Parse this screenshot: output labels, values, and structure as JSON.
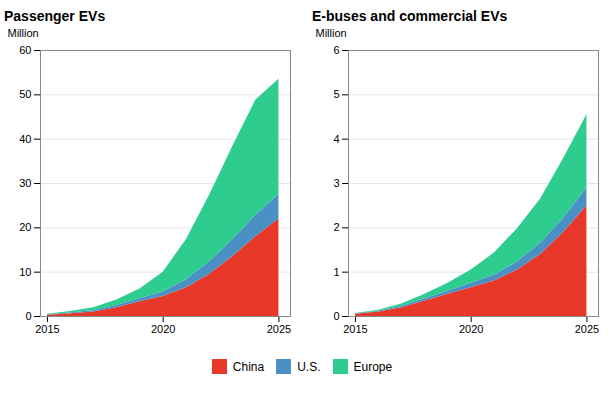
{
  "chart_data": [
    {
      "type": "area",
      "title": "Passenger EVs",
      "ylabel": "Million",
      "x": [
        2015,
        2016,
        2017,
        2018,
        2019,
        2020,
        2021,
        2022,
        2023,
        2024,
        2025
      ],
      "series": [
        {
          "name": "China",
          "color": "#E8382A",
          "values": [
            0.3,
            0.6,
            1.0,
            2.0,
            3.3,
            4.5,
            6.5,
            9.5,
            13.5,
            18.0,
            22.0
          ]
        },
        {
          "name": "U.S.",
          "color": "#4A90C4",
          "values": [
            0.1,
            0.2,
            0.35,
            0.5,
            0.7,
            1.0,
            1.8,
            2.8,
            3.8,
            4.8,
            5.5
          ]
        },
        {
          "name": "Europe",
          "color": "#2ECC8E",
          "values": [
            0.1,
            0.3,
            0.6,
            1.2,
            2.2,
            4.5,
            9.0,
            15.0,
            21.0,
            26.0,
            26.0
          ]
        }
      ],
      "stacked": true,
      "xlim": [
        2014.7,
        2025.5
      ],
      "xticks": [
        2015,
        2020,
        2025
      ],
      "ylim": [
        0,
        60
      ],
      "yticks": [
        0,
        10,
        20,
        30,
        40,
        50,
        60
      ],
      "grid": true,
      "legend": "bottom"
    },
    {
      "type": "area",
      "title": "E-buses and commercial EVs",
      "ylabel": "Million",
      "x": [
        2015,
        2016,
        2017,
        2018,
        2019,
        2020,
        2021,
        2022,
        2023,
        2024,
        2025
      ],
      "series": [
        {
          "name": "China",
          "color": "#E8382A",
          "values": [
            0.05,
            0.1,
            0.2,
            0.35,
            0.5,
            0.65,
            0.8,
            1.05,
            1.4,
            1.9,
            2.5
          ]
        },
        {
          "name": "U.S.",
          "color": "#4A90C4",
          "values": [
            0.01,
            0.02,
            0.03,
            0.05,
            0.07,
            0.1,
            0.13,
            0.18,
            0.25,
            0.32,
            0.4
          ]
        },
        {
          "name": "Europe",
          "color": "#2ECC8E",
          "values": [
            0.01,
            0.02,
            0.05,
            0.1,
            0.18,
            0.3,
            0.5,
            0.75,
            1.0,
            1.35,
            1.65
          ]
        }
      ],
      "stacked": true,
      "xlim": [
        2014.7,
        2025.5
      ],
      "xticks": [
        2015,
        2020,
        2025
      ],
      "ylim": [
        0,
        6
      ],
      "yticks": [
        0,
        1,
        2,
        3,
        4,
        5,
        6
      ],
      "grid": true,
      "legend": "bottom"
    }
  ]
}
